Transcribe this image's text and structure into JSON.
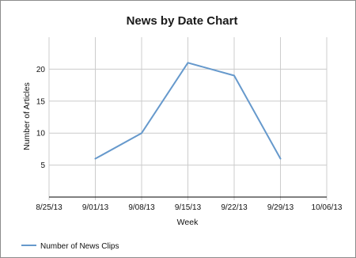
{
  "chart_data": {
    "type": "line",
    "title": "News by Date Chart",
    "xlabel": "Week",
    "ylabel": "Number of Articles",
    "x_tick_labels": [
      "8/25/13",
      "9/01/13",
      "9/08/13",
      "9/15/13",
      "9/22/13",
      "9/29/13",
      "10/06/13"
    ],
    "y_tick_labels": [
      "5",
      "10",
      "15",
      "20"
    ],
    "y_ticks": [
      5,
      10,
      15,
      20
    ],
    "ylim": [
      0,
      25
    ],
    "grid": true,
    "legend_position": "bottom-left",
    "series": [
      {
        "name": "Number of News Clips",
        "color": "#6699cc",
        "points": [
          {
            "x": "9/01/13",
            "y": 6
          },
          {
            "x": "9/08/13",
            "y": 10
          },
          {
            "x": "9/15/13",
            "y": 21
          },
          {
            "x": "9/22/13",
            "y": 19
          },
          {
            "x": "9/29/13",
            "y": 6
          }
        ]
      }
    ]
  }
}
